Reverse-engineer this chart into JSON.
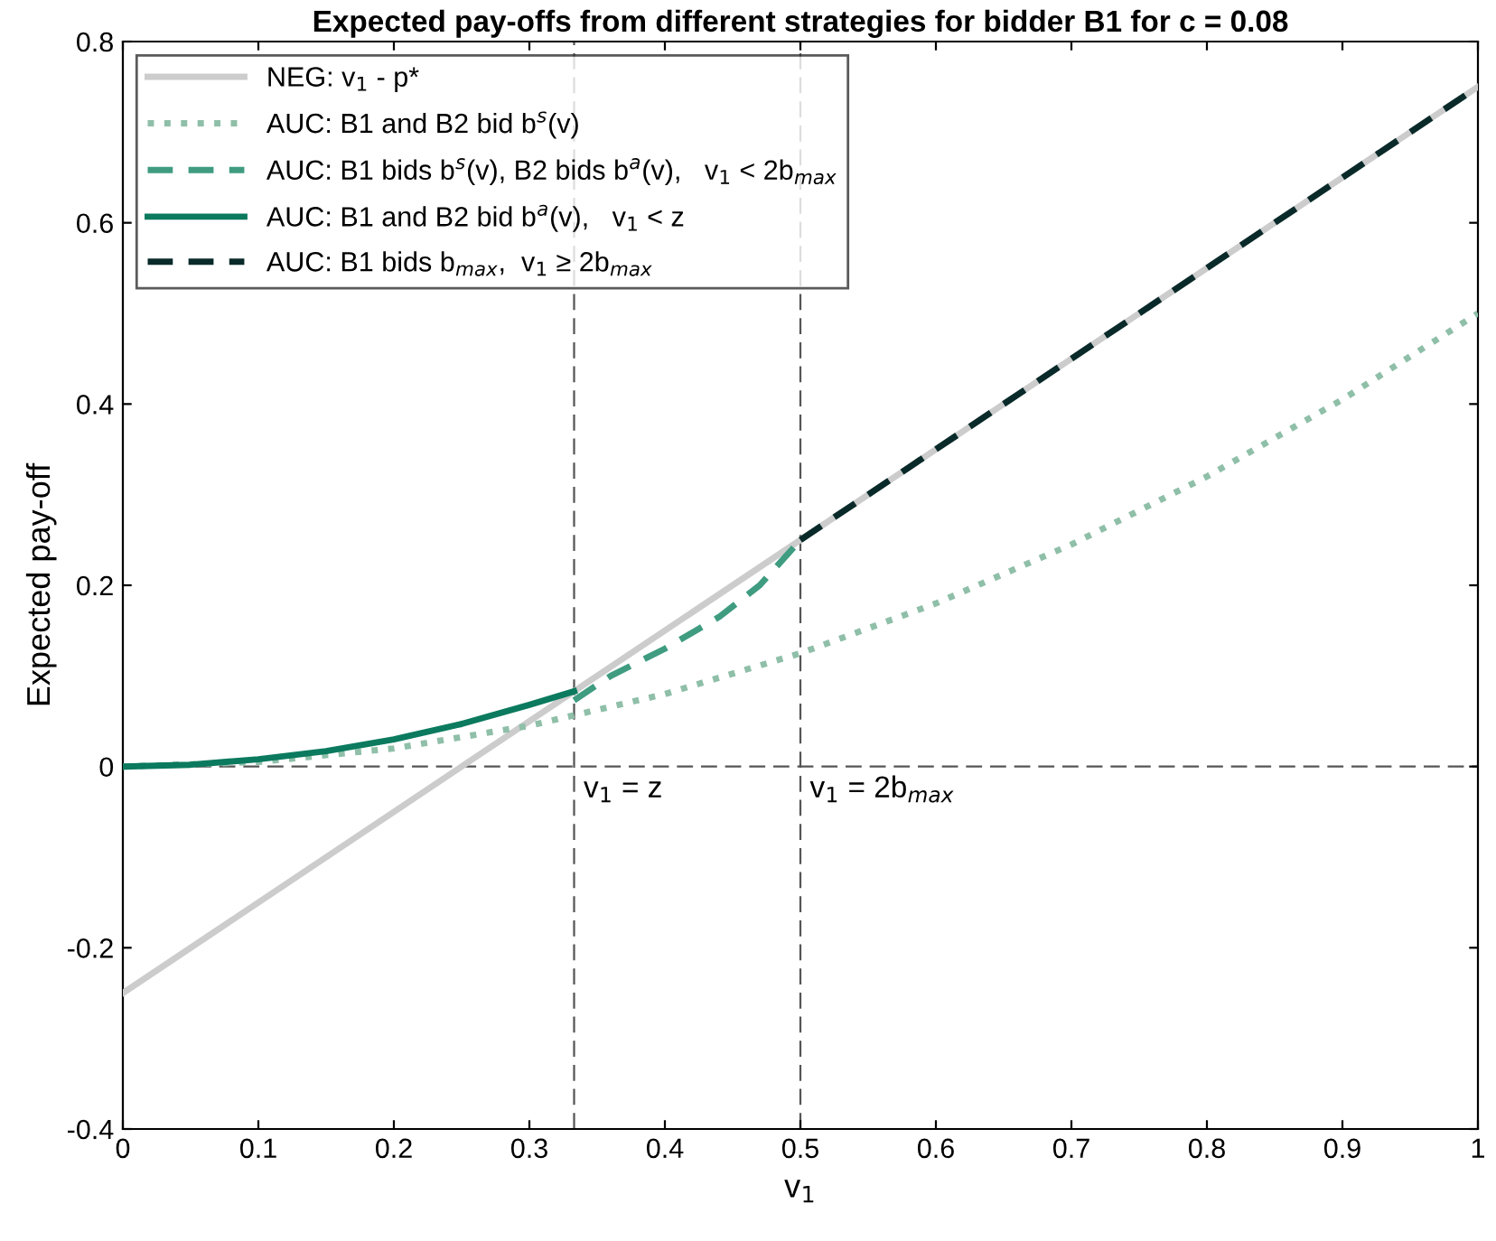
{
  "chart_data": {
    "type": "line",
    "title": "Expected pay-offs from different strategies for bidder B1 for c = 0.08",
    "xlabel": "v$_{1}$",
    "ylabel": "Expected pay-off",
    "xlim": [
      0,
      1
    ],
    "ylim": [
      -0.4,
      0.8
    ],
    "xticks": [
      0,
      0.1,
      0.2,
      0.3,
      0.4,
      0.5,
      0.6,
      0.7,
      0.8,
      0.9,
      1
    ],
    "yticks": [
      -0.4,
      -0.2,
      0,
      0.2,
      0.4,
      0.6,
      0.8
    ],
    "grid": false,
    "legend": "top left",
    "marker": "none",
    "series": [
      {
        "name": "NEG: v$_{1}$ - p*",
        "color": "#cccccc",
        "line_style": "solid",
        "x": [
          0,
          1
        ],
        "values": [
          -0.25,
          0.75
        ]
      },
      {
        "name": "AUC: B1 and B2 bid b$^{s}$(v)",
        "color": "#8fbfa8",
        "line_style": "dotted",
        "x": [
          0,
          0.1,
          0.2,
          0.3,
          0.4,
          0.5,
          0.6,
          0.7,
          0.8,
          0.9,
          1
        ],
        "values": [
          0,
          0.005,
          0.02,
          0.045,
          0.08,
          0.125,
          0.18,
          0.245,
          0.32,
          0.405,
          0.5
        ]
      },
      {
        "name": "AUC: B1 bids b$^{s}$(v), B2 bids b$^{a}$(v),   v$_{1}$ < 2b$_{max}$",
        "color": "#3f9c80",
        "line_style": "dashed",
        "x": [
          0.333,
          0.36,
          0.4,
          0.44,
          0.47,
          0.5
        ],
        "values": [
          0.073,
          0.1,
          0.13,
          0.165,
          0.2,
          0.25
        ]
      },
      {
        "name": "AUC: B1 and B2 bid b$^{a}$(v),   v$_{1}$ < z",
        "color": "#0b7a5e",
        "line_style": "solid",
        "x": [
          0,
          0.05,
          0.1,
          0.15,
          0.2,
          0.25,
          0.3,
          0.333
        ],
        "values": [
          0,
          0.002,
          0.008,
          0.017,
          0.03,
          0.047,
          0.068,
          0.083
        ]
      },
      {
        "name": "AUC: B1 bids b$_{max}$,  v$_{1}$ ≥ 2b$_{max}$",
        "color": "#0a2a2a",
        "line_style": "dashed",
        "x": [
          0.5,
          1
        ],
        "values": [
          0.25,
          0.75
        ]
      }
    ],
    "ref_lines": [
      {
        "axis": "y",
        "value": 0,
        "label": null,
        "color": "#555555",
        "line_style": "dashed"
      },
      {
        "axis": "x",
        "value": 0.333,
        "label": "v$_{1}$ = z",
        "color": "#555555",
        "line_style": "dashed"
      },
      {
        "axis": "x",
        "value": 0.5,
        "label": "v$_{1}$ = 2b$_{max}$",
        "color": "#555555",
        "line_style": "dashed"
      }
    ]
  }
}
